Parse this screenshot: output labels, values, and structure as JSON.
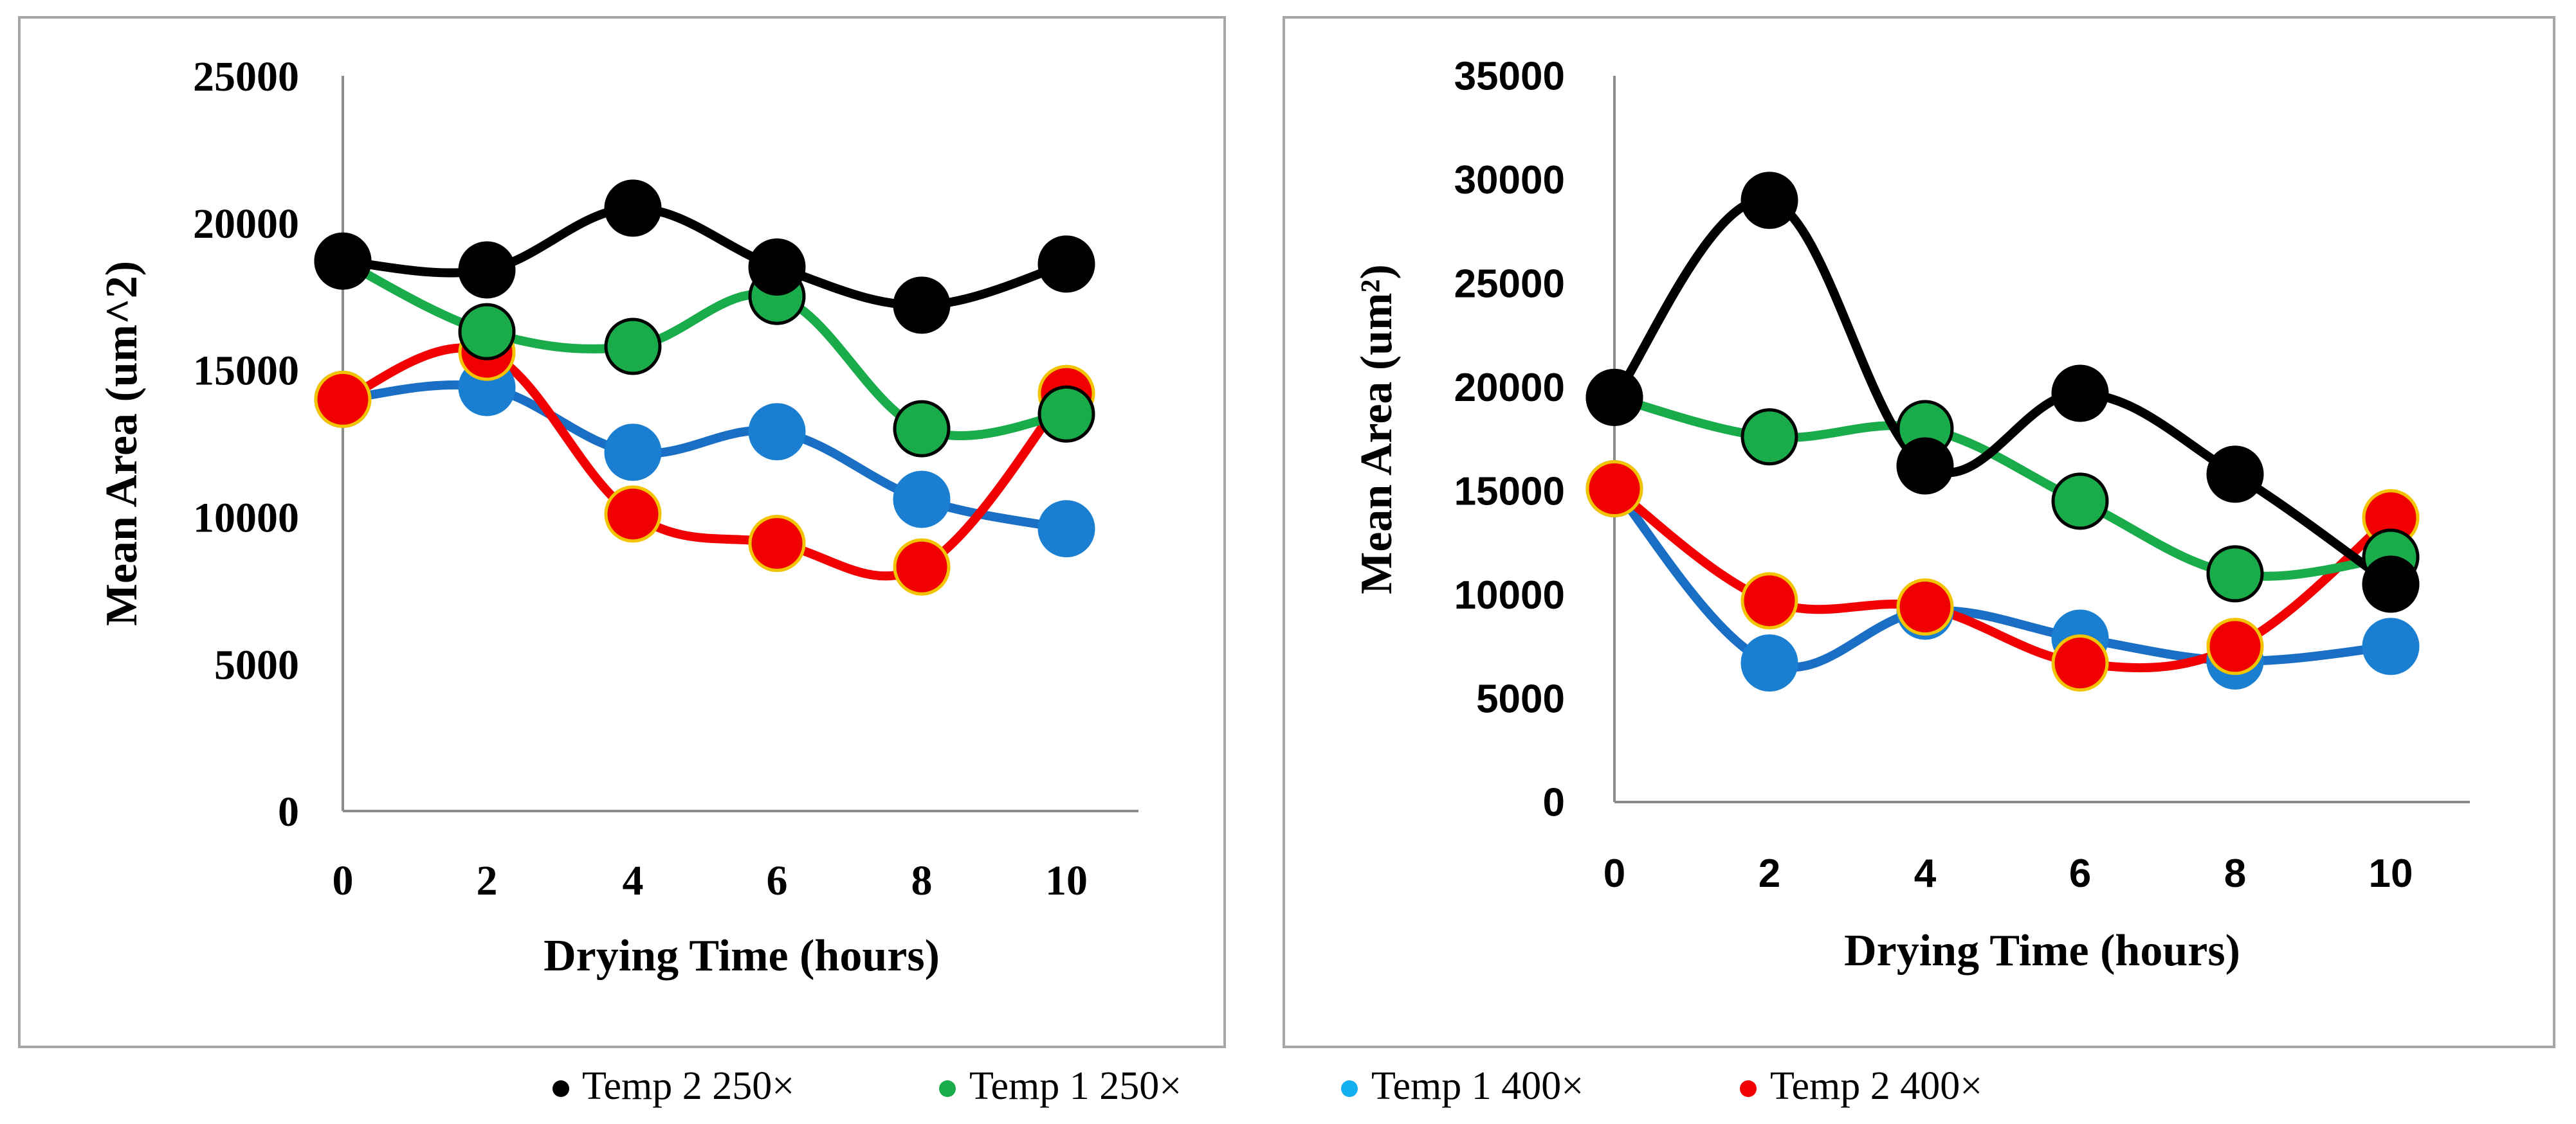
{
  "colors": {
    "temp2_250": "#000000",
    "temp1_250": "#1aab4b",
    "temp1_400_line": "#1a6fc4",
    "temp1_400_marker": "#1a7fd0",
    "temp2_400": "#f00000",
    "marker_border_red": "#f2c400",
    "frame": "#a6a6a6",
    "axis": "#8c8c8c"
  },
  "legend": [
    {
      "label": "Temp 2 250×",
      "color": "#000000"
    },
    {
      "label": "Temp 1 250×",
      "color": "#1aab4b"
    },
    {
      "label": "Temp 1 400×",
      "color": "#12b0f0"
    },
    {
      "label": "Temp 2 400×",
      "color": "#f00000"
    }
  ],
  "chart_data": [
    {
      "type": "line",
      "title": "",
      "xlabel": "Drying Time (hours)",
      "ylabel": "Mean Area (um^2)",
      "x": [
        0,
        2,
        4,
        6,
        8,
        10
      ],
      "x_tick_labels": [
        "0",
        "2",
        "4",
        "6",
        "8",
        "10"
      ],
      "ylim": [
        0,
        25000
      ],
      "y_ticks": [
        0,
        5000,
        10000,
        15000,
        20000,
        25000
      ],
      "y_tick_labels": [
        "0",
        "5000",
        "10000",
        "15000",
        "20000",
        "25000"
      ],
      "grid": false,
      "series": [
        {
          "name": "Temp 2 250×",
          "key": "temp2_250",
          "values": [
            18700,
            18400,
            20500,
            18500,
            17200,
            18600
          ]
        },
        {
          "name": "Temp 1 250×",
          "key": "temp1_250",
          "values": [
            18700,
            16300,
            15800,
            17500,
            13000,
            13500
          ]
        },
        {
          "name": "Temp 1 400×",
          "key": "temp1_400",
          "values": [
            14000,
            14400,
            12200,
            12900,
            10600,
            9600
          ]
        },
        {
          "name": "Temp 2 400×",
          "key": "temp2_400",
          "values": [
            14000,
            15600,
            10100,
            9100,
            8300,
            14200
          ]
        }
      ]
    },
    {
      "type": "line",
      "title": "",
      "xlabel": "Drying Time (hours)",
      "ylabel": "Mean Area (um²)",
      "x": [
        0,
        2,
        4,
        6,
        8,
        10
      ],
      "x_tick_labels": [
        "0",
        "2",
        "4",
        "6",
        "8",
        "10"
      ],
      "ylim": [
        0,
        35000
      ],
      "y_ticks": [
        0,
        5000,
        10000,
        15000,
        20000,
        25000,
        30000,
        35000
      ],
      "y_tick_labels": [
        "0",
        "5000",
        "10000",
        "15000",
        "20000",
        "25000",
        "30000",
        "35000"
      ],
      "grid": false,
      "series": [
        {
          "name": "Temp 2 250×",
          "key": "temp2_250",
          "values": [
            19500,
            29000,
            16200,
            19700,
            15800,
            10500
          ]
        },
        {
          "name": "Temp 1 250×",
          "key": "temp1_250",
          "values": [
            19500,
            17600,
            18000,
            14500,
            11000,
            11800
          ]
        },
        {
          "name": "Temp 1 400×",
          "key": "temp1_400",
          "values": [
            15100,
            6700,
            9200,
            7900,
            6800,
            7500
          ]
        },
        {
          "name": "Temp 2 400×",
          "key": "temp2_400",
          "values": [
            15100,
            9700,
            9400,
            6700,
            7500,
            13700
          ]
        }
      ]
    }
  ]
}
